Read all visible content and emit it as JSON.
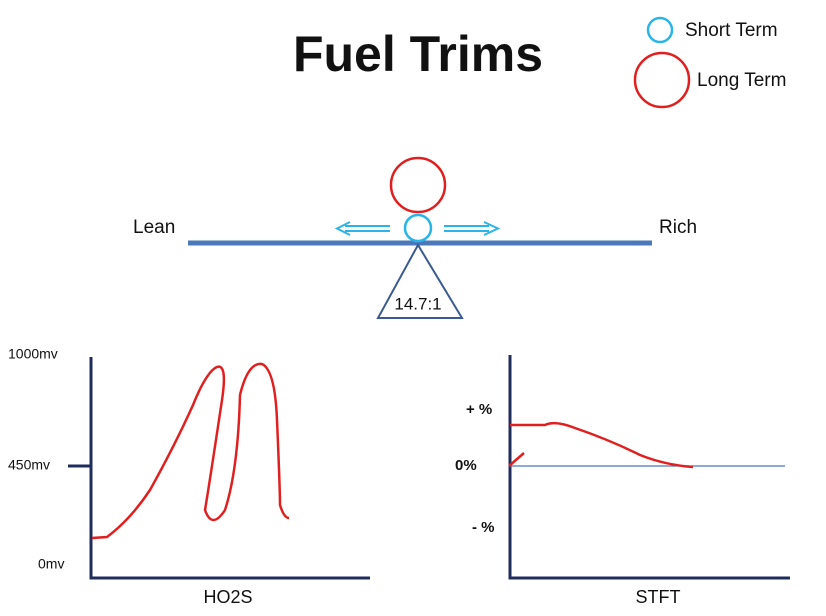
{
  "header": {
    "title": "Fuel Trims"
  },
  "legend": {
    "short_term": "Short Term",
    "long_term": "Long Term"
  },
  "seesaw": {
    "left": "Lean",
    "right": "Rich",
    "ratio": "14.7:1"
  },
  "ho2s_graph": {
    "y_labels": [
      "1000mv",
      "450mv",
      "0mv"
    ],
    "x_label": "HO2S"
  },
  "stft_graph": {
    "y_labels": [
      "+ %",
      "0%",
      "- %"
    ],
    "x_label": "STFT"
  }
}
